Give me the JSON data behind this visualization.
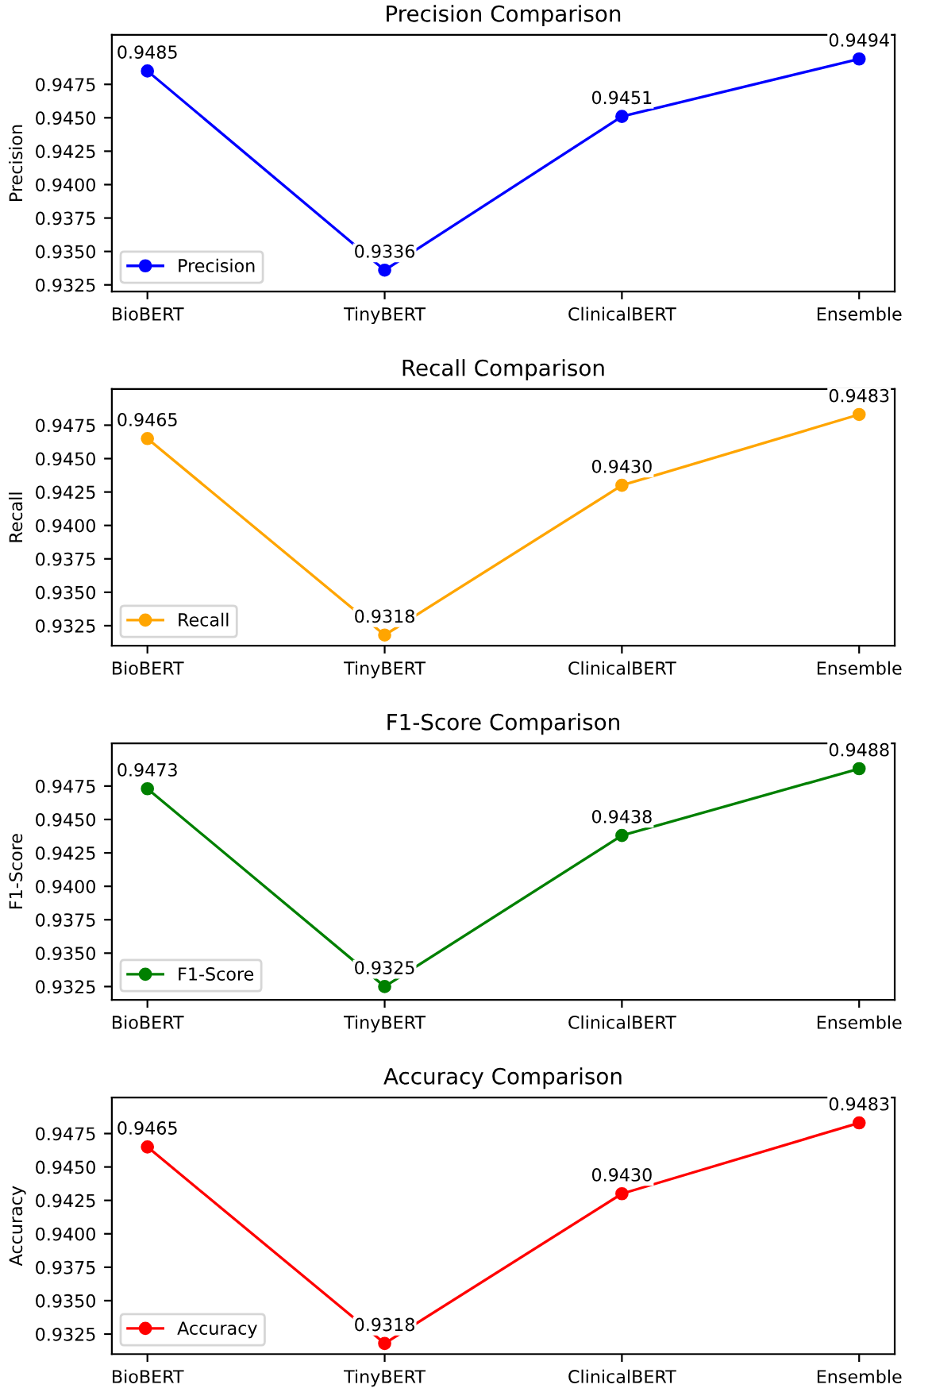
{
  "chart_data": [
    {
      "type": "line",
      "title": "Precision Comparison",
      "ylabel": "Precision",
      "categories": [
        "BioBERT",
        "TinyBERT",
        "ClinicalBERT",
        "Ensemble"
      ],
      "series": [
        {
          "name": "Precision",
          "color": "#0000ff",
          "values": [
            0.9485,
            0.9336,
            0.9451,
            0.9494
          ],
          "value_labels": [
            "0.9485",
            "0.9336",
            "0.9451",
            "0.9494"
          ]
        }
      ],
      "ylim": [
        0.932,
        0.9512
      ],
      "yticks": [
        {
          "value": 0.9325,
          "label": "0.9325"
        },
        {
          "value": 0.935,
          "label": "0.9350"
        },
        {
          "value": 0.9375,
          "label": "0.9375"
        },
        {
          "value": 0.94,
          "label": "0.9400"
        },
        {
          "value": 0.9425,
          "label": "0.9425"
        },
        {
          "value": 0.945,
          "label": "0.9450"
        },
        {
          "value": 0.9475,
          "label": "0.9475"
        }
      ],
      "marker": "circle",
      "legend": "bottom left"
    },
    {
      "type": "line",
      "title": "Recall Comparison",
      "ylabel": "Recall",
      "categories": [
        "BioBERT",
        "TinyBERT",
        "ClinicalBERT",
        "Ensemble"
      ],
      "series": [
        {
          "name": "Recall",
          "color": "#ffa500",
          "values": [
            0.9465,
            0.9318,
            0.943,
            0.9483
          ],
          "value_labels": [
            "0.9465",
            "0.9318",
            "0.9430",
            "0.9483"
          ]
        }
      ],
      "ylim": [
        0.931,
        0.9502
      ],
      "yticks": [
        {
          "value": 0.9325,
          "label": "0.9325"
        },
        {
          "value": 0.935,
          "label": "0.9350"
        },
        {
          "value": 0.9375,
          "label": "0.9375"
        },
        {
          "value": 0.94,
          "label": "0.9400"
        },
        {
          "value": 0.9425,
          "label": "0.9425"
        },
        {
          "value": 0.945,
          "label": "0.9450"
        },
        {
          "value": 0.9475,
          "label": "0.9475"
        }
      ],
      "marker": "circle",
      "legend": "bottom left"
    },
    {
      "type": "line",
      "title": "F1-Score Comparison",
      "ylabel": "F1-Score",
      "categories": [
        "BioBERT",
        "TinyBERT",
        "ClinicalBERT",
        "Ensemble"
      ],
      "series": [
        {
          "name": "F1-Score",
          "color": "#008000",
          "values": [
            0.9473,
            0.9325,
            0.9438,
            0.9488
          ],
          "value_labels": [
            "0.9473",
            "0.9325",
            "0.9438",
            "0.9488"
          ]
        }
      ],
      "ylim": [
        0.9315,
        0.9507
      ],
      "yticks": [
        {
          "value": 0.9325,
          "label": "0.9325"
        },
        {
          "value": 0.935,
          "label": "0.9350"
        },
        {
          "value": 0.9375,
          "label": "0.9375"
        },
        {
          "value": 0.94,
          "label": "0.9400"
        },
        {
          "value": 0.9425,
          "label": "0.9425"
        },
        {
          "value": 0.945,
          "label": "0.9450"
        },
        {
          "value": 0.9475,
          "label": "0.9475"
        }
      ],
      "marker": "circle",
      "legend": "bottom left"
    },
    {
      "type": "line",
      "title": "Accuracy Comparison",
      "ylabel": "Accuracy",
      "categories": [
        "BioBERT",
        "TinyBERT",
        "ClinicalBERT",
        "Ensemble"
      ],
      "series": [
        {
          "name": "Accuracy",
          "color": "#ff0000",
          "values": [
            0.9465,
            0.9318,
            0.943,
            0.9483
          ],
          "value_labels": [
            "0.9465",
            "0.9318",
            "0.9430",
            "0.9483"
          ]
        }
      ],
      "ylim": [
        0.931,
        0.9502
      ],
      "yticks": [
        {
          "value": 0.9325,
          "label": "0.9325"
        },
        {
          "value": 0.935,
          "label": "0.9350"
        },
        {
          "value": 0.9375,
          "label": "0.9375"
        },
        {
          "value": 0.94,
          "label": "0.9400"
        },
        {
          "value": 0.9425,
          "label": "0.9425"
        },
        {
          "value": 0.945,
          "label": "0.9450"
        },
        {
          "value": 0.9475,
          "label": "0.9475"
        }
      ],
      "marker": "circle",
      "legend": "bottom left"
    }
  ]
}
